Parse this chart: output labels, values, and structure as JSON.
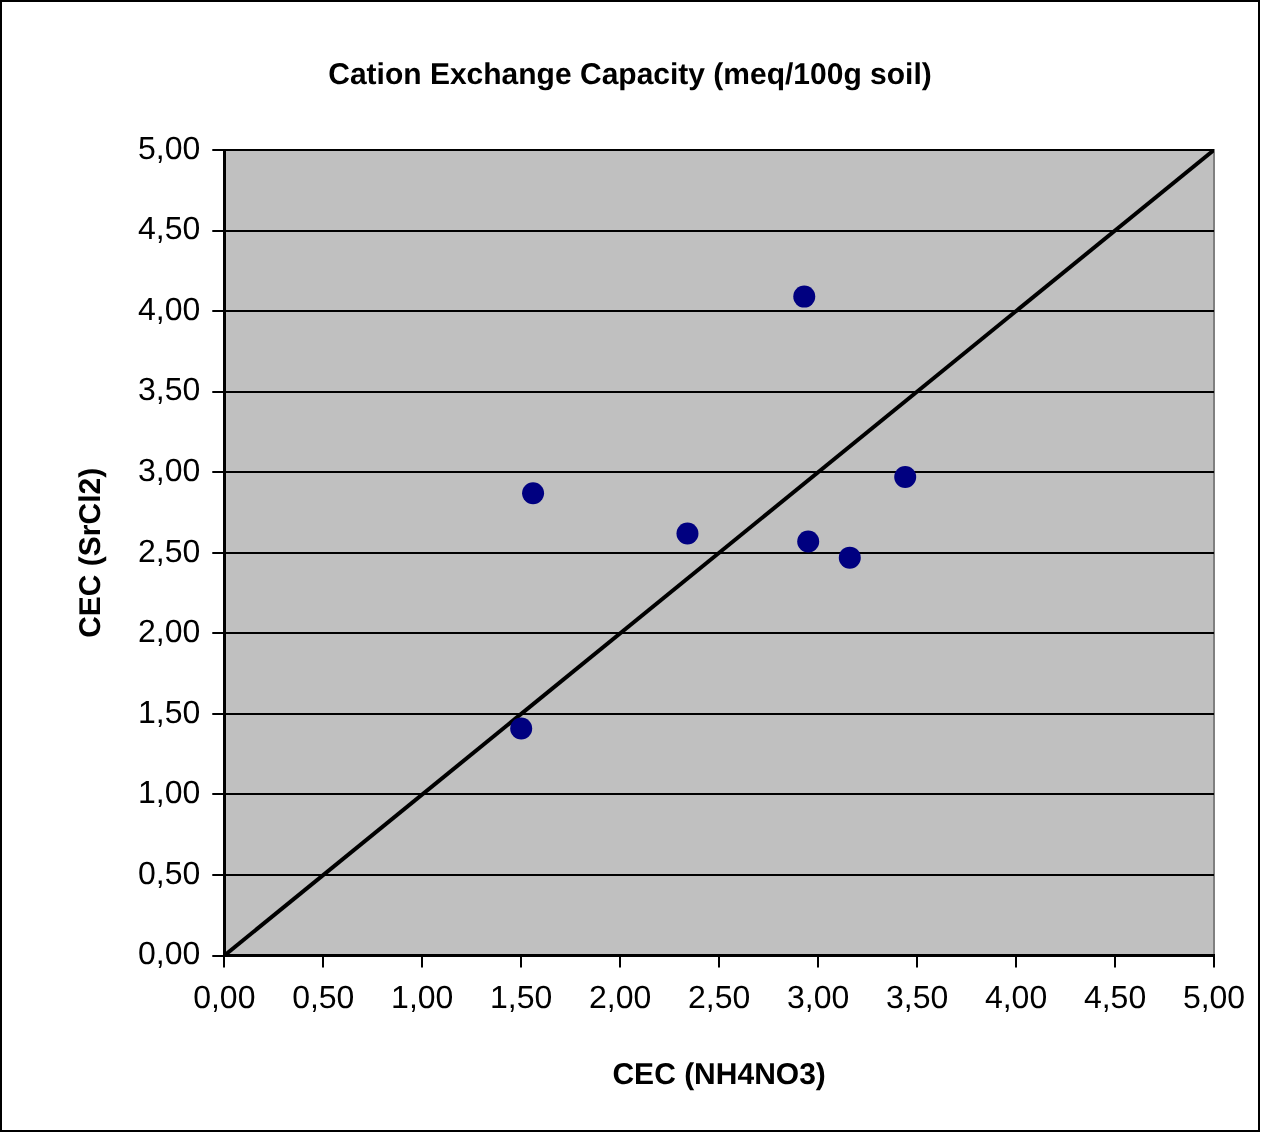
{
  "chart_data": {
    "type": "scatter",
    "title": "Cation Exchange Capacity (meq/100g soil)",
    "xlabel": "CEC (NH4NO3)",
    "ylabel": "CEC (SrCl2)",
    "xlim": [
      0,
      5
    ],
    "ylim": [
      0,
      5
    ],
    "xticks": [
      {
        "value": 0,
        "label": "0,00"
      },
      {
        "value": 0.5,
        "label": "0,50"
      },
      {
        "value": 1,
        "label": "1,00"
      },
      {
        "value": 1.5,
        "label": "1,50"
      },
      {
        "value": 2,
        "label": "2,00"
      },
      {
        "value": 2.5,
        "label": "2,50"
      },
      {
        "value": 3,
        "label": "3,00"
      },
      {
        "value": 3.5,
        "label": "3,50"
      },
      {
        "value": 4,
        "label": "4,00"
      },
      {
        "value": 4.5,
        "label": "4,50"
      },
      {
        "value": 5,
        "label": "5,00"
      }
    ],
    "yticks": [
      {
        "value": 0,
        "label": "0,00"
      },
      {
        "value": 0.5,
        "label": "0,50"
      },
      {
        "value": 1,
        "label": "1,00"
      },
      {
        "value": 1.5,
        "label": "1,50"
      },
      {
        "value": 2,
        "label": "2,00"
      },
      {
        "value": 2.5,
        "label": "2,50"
      },
      {
        "value": 3,
        "label": "3,00"
      },
      {
        "value": 3.5,
        "label": "3,50"
      },
      {
        "value": 4,
        "label": "4,00"
      },
      {
        "value": 4.5,
        "label": "4,50"
      },
      {
        "value": 5,
        "label": "5,00"
      }
    ],
    "grid": "y",
    "legend": false,
    "marker": "circle",
    "series": [
      {
        "color": "#000080",
        "x": [
          1.5,
          1.56,
          2.34,
          2.93,
          2.95,
          3.16,
          3.44
        ],
        "values": [
          1.41,
          2.87,
          2.62,
          4.09,
          2.57,
          2.47,
          2.97
        ]
      },
      {
        "type": "line",
        "color": "#000000",
        "x": [
          0,
          5
        ],
        "values": [
          0,
          5
        ],
        "marker": "none",
        "line_style": "solid"
      }
    ]
  }
}
